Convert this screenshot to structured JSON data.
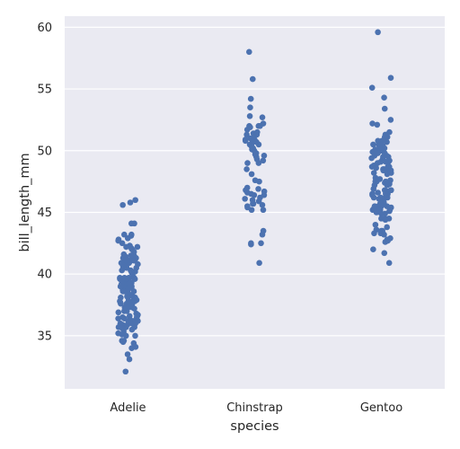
{
  "chart_data": {
    "type": "scatter",
    "subtype": "strip",
    "xlabel": "species",
    "ylabel": "bill_length_mm",
    "categories": [
      "Adelie",
      "Chinstrap",
      "Gentoo"
    ],
    "ylim": [
      30.7,
      60.9
    ],
    "yticks": [
      35,
      40,
      45,
      50,
      55,
      60
    ],
    "grid": true,
    "colors": {
      "background": "#eaeaf2",
      "grid": "#ffffff",
      "point": "#4c72b0"
    },
    "series": [
      {
        "category": "Adelie",
        "values": [
          39.1,
          39.5,
          40.3,
          36.7,
          39.3,
          38.9,
          39.2,
          34.1,
          42.0,
          37.8,
          37.8,
          41.1,
          38.6,
          34.6,
          36.6,
          38.7,
          42.5,
          34.4,
          46.0,
          37.8,
          37.7,
          35.9,
          38.2,
          38.8,
          35.3,
          40.6,
          40.5,
          37.9,
          40.5,
          39.5,
          37.2,
          39.5,
          40.9,
          36.4,
          39.2,
          38.8,
          42.2,
          37.6,
          39.8,
          36.5,
          40.8,
          36.0,
          44.1,
          37.0,
          39.6,
          41.1,
          37.5,
          36.0,
          42.3,
          39.6,
          40.1,
          35.0,
          42.0,
          34.5,
          41.4,
          39.0,
          40.6,
          36.5,
          37.6,
          35.7,
          41.3,
          37.6,
          41.1,
          36.4,
          41.6,
          35.5,
          41.1,
          35.9,
          41.8,
          33.5,
          39.7,
          39.6,
          45.8,
          35.5,
          42.8,
          40.9,
          37.2,
          36.2,
          42.1,
          34.6,
          42.9,
          36.7,
          35.1,
          37.3,
          41.3,
          36.3,
          36.9,
          38.3,
          38.9,
          35.7,
          41.1,
          34.0,
          39.6,
          36.2,
          40.8,
          38.1,
          40.3,
          33.1,
          43.2,
          35.0,
          41.0,
          37.7,
          37.8,
          37.9,
          39.7,
          38.6,
          38.2,
          38.1,
          43.2,
          38.1,
          45.6,
          39.7,
          42.2,
          39.6,
          42.7,
          38.6,
          37.3,
          35.7,
          41.1,
          36.2,
          37.7,
          40.2,
          41.4,
          35.2,
          40.6,
          38.8,
          41.5,
          39.0,
          44.1,
          38.5,
          43.1,
          36.8,
          37.5,
          38.1,
          41.1,
          35.6,
          40.2,
          37.0,
          39.7,
          40.2,
          40.6,
          32.1,
          40.7,
          37.3,
          39.0,
          39.2,
          36.6,
          36.0,
          37.8,
          36.0,
          41.5
        ]
      },
      {
        "category": "Chinstrap",
        "values": [
          46.5,
          50.0,
          51.3,
          45.4,
          52.7,
          45.2,
          46.1,
          51.3,
          46.0,
          51.3,
          46.6,
          51.7,
          47.0,
          52.0,
          45.9,
          50.5,
          50.3,
          58.0,
          46.4,
          49.2,
          42.4,
          48.5,
          43.2,
          50.6,
          46.7,
          52.0,
          50.5,
          49.5,
          46.4,
          52.8,
          40.9,
          54.2,
          42.5,
          51.0,
          49.7,
          47.5,
          47.6,
          52.0,
          46.9,
          53.5,
          49.0,
          46.2,
          50.9,
          45.5,
          50.9,
          50.8,
          50.1,
          49.0,
          51.5,
          49.8,
          48.1,
          51.4,
          45.7,
          50.7,
          42.5,
          52.2,
          45.2,
          49.3,
          50.2,
          45.6,
          51.9,
          46.8,
          45.7,
          55.8,
          43.5,
          49.6,
          50.8,
          50.2
        ]
      },
      {
        "category": "Gentoo",
        "values": [
          46.1,
          50.0,
          48.7,
          50.0,
          47.6,
          46.5,
          45.4,
          46.7,
          43.3,
          46.8,
          40.9,
          49.0,
          45.5,
          48.4,
          45.8,
          49.3,
          42.0,
          49.2,
          46.2,
          48.7,
          50.2,
          45.1,
          46.5,
          46.3,
          42.9,
          46.1,
          44.5,
          47.8,
          48.2,
          50.0,
          47.3,
          42.8,
          45.1,
          59.6,
          49.1,
          48.4,
          42.6,
          44.4,
          44.0,
          48.7,
          42.7,
          49.6,
          45.3,
          49.6,
          50.5,
          43.6,
          45.5,
          50.5,
          44.9,
          45.2,
          46.6,
          48.5,
          45.1,
          50.1,
          46.5,
          45.0,
          43.8,
          45.5,
          43.2,
          50.4,
          45.3,
          46.2,
          45.7,
          54.3,
          45.8,
          49.8,
          46.2,
          49.5,
          43.5,
          50.7,
          47.7,
          46.4,
          48.2,
          46.5,
          46.4,
          48.6,
          47.5,
          51.1,
          45.2,
          45.2,
          49.1,
          52.5,
          47.4,
          50.0,
          44.9,
          50.8,
          43.4,
          51.3,
          47.5,
          52.1,
          47.5,
          52.2,
          45.5,
          49.5,
          44.5,
          50.8,
          49.4,
          46.9,
          48.4,
          51.1,
          48.5,
          55.9,
          47.2,
          49.1,
          47.3,
          46.8,
          41.7,
          53.4,
          43.3,
          48.1,
          50.5,
          49.8,
          43.5,
          51.5,
          46.2,
          55.1,
          44.5,
          48.8,
          47.2,
          46.8,
          50.4,
          45.2,
          49.9
        ]
      }
    ]
  }
}
